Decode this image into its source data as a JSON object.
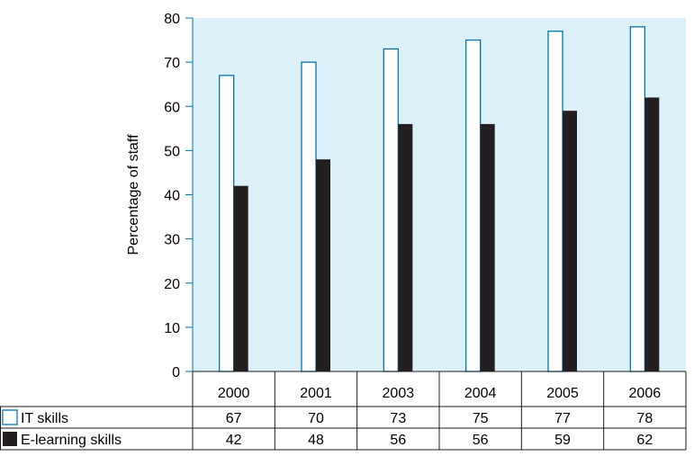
{
  "chart_data": {
    "type": "bar",
    "ylabel": "Percentage of staff",
    "ylim": [
      0,
      80
    ],
    "yticks": [
      0,
      10,
      20,
      30,
      40,
      50,
      60,
      70,
      80
    ],
    "grid": false,
    "legend": "table-left",
    "categories": [
      "2000",
      "2001",
      "2003",
      "2004",
      "2005",
      "2006"
    ],
    "series": [
      {
        "name": "IT skills",
        "values": [
          67,
          70,
          73,
          75,
          77,
          78
        ],
        "fill": "#ffffff",
        "stroke": "#0072b2"
      },
      {
        "name": "E-learning skills",
        "values": [
          42,
          48,
          56,
          56,
          59,
          62
        ],
        "fill": "#231f20",
        "stroke": "#231f20"
      }
    ],
    "colors": {
      "plot_background": "#dcf0f9",
      "axis": "#0072b2",
      "table_border": "#1a1a1a"
    }
  }
}
